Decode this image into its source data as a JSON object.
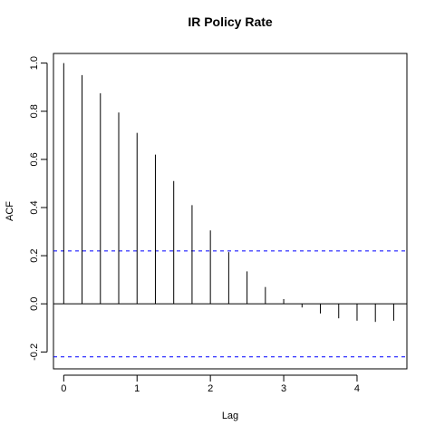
{
  "chart_data": {
    "type": "bar",
    "title": "IR Policy Rate",
    "xlabel": "Lag",
    "ylabel": "ACF",
    "xlim": [
      -0.14,
      4.68
    ],
    "ylim": [
      -0.27,
      1.04
    ],
    "x_ticks": [
      0,
      1,
      2,
      3,
      4
    ],
    "y_ticks": [
      -0.2,
      0.0,
      0.2,
      0.4,
      0.6,
      0.8,
      1.0
    ],
    "y_tick_labels": [
      "-0.2",
      "0.0",
      "0.2",
      "0.4",
      "0.6",
      "0.8",
      "1.0"
    ],
    "lags": [
      0,
      0.25,
      0.5,
      0.75,
      1,
      1.25,
      1.5,
      1.75,
      2,
      2.25,
      2.5,
      2.75,
      3,
      3.25,
      3.5,
      3.75,
      4,
      4.25,
      4.5
    ],
    "values": [
      1.0,
      0.95,
      0.875,
      0.795,
      0.71,
      0.62,
      0.51,
      0.41,
      0.305,
      0.215,
      0.135,
      0.07,
      0.02,
      -0.015,
      -0.04,
      -0.06,
      -0.07,
      -0.075,
      -0.07
    ],
    "confidence_bound": 0.22,
    "zero_line": true,
    "grid": false,
    "colors": {
      "bars": "#000000",
      "bound": "#0000ff",
      "axes": "#000000"
    }
  }
}
